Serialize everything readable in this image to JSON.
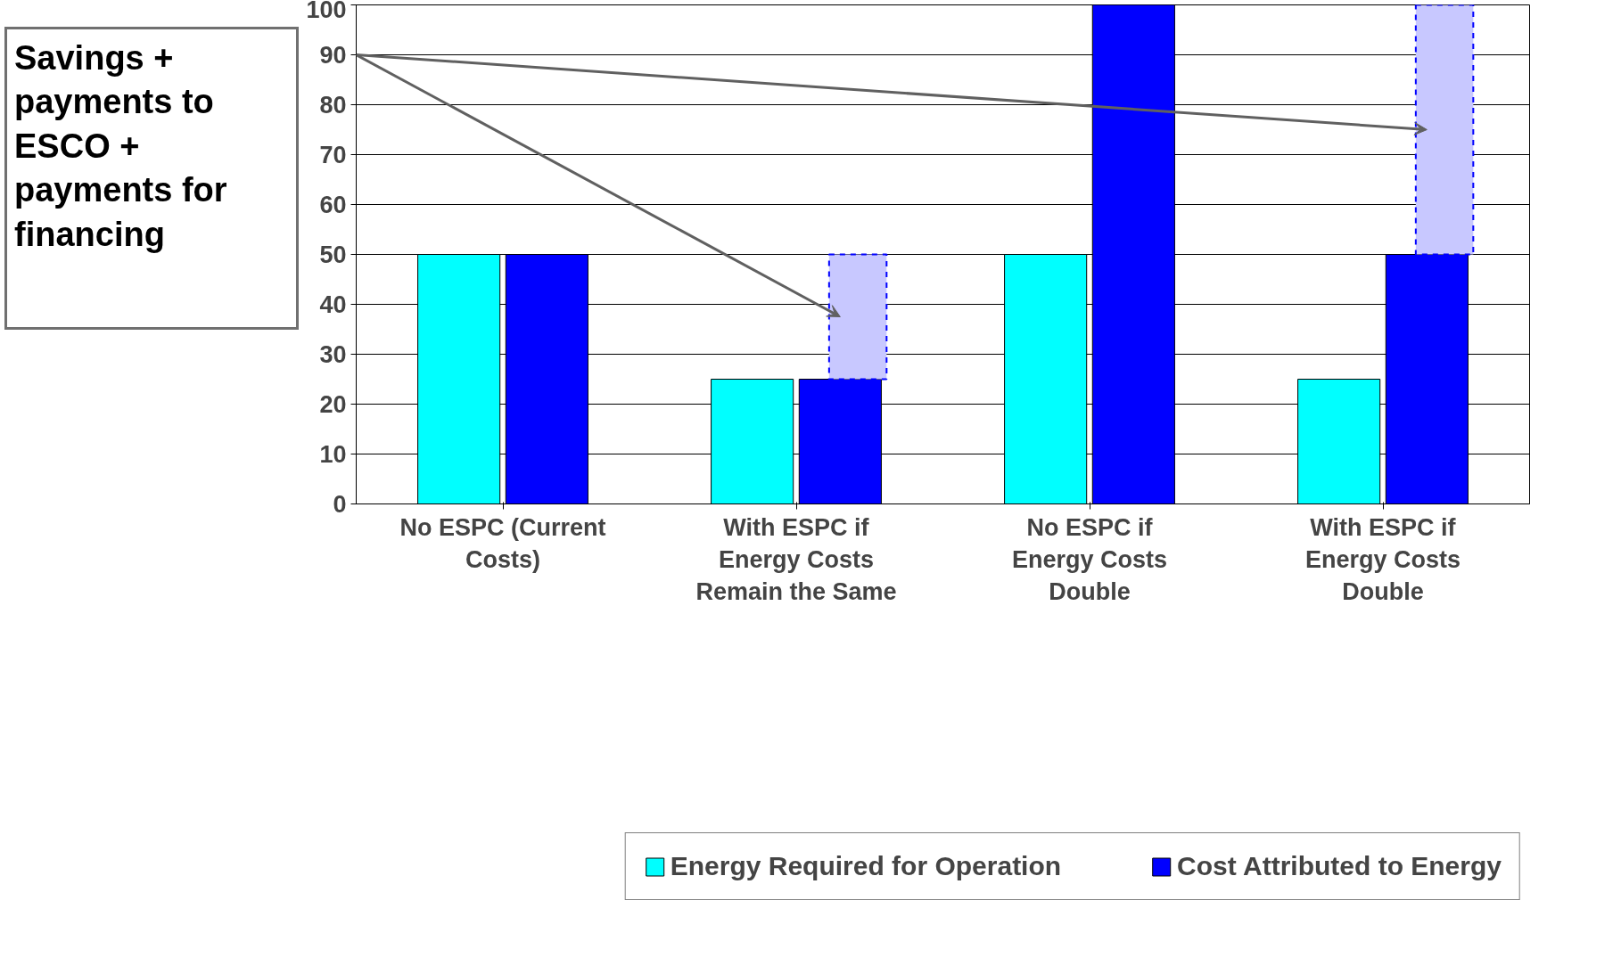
{
  "chart_data": {
    "type": "bar",
    "categories": [
      "No ESPC (Current Costs)",
      "With ESPC if Energy Costs Remain the Same",
      "No ESPC if Energy Costs Double",
      "With ESPC if Energy Costs Double"
    ],
    "series": [
      {
        "name": "Energy Required for Operation",
        "color": "#00ffff",
        "values": [
          50,
          25,
          50,
          25
        ]
      },
      {
        "name": "Cost Attributed to Energy",
        "color": "#0000ff",
        "values": [
          50,
          25,
          100,
          50
        ]
      },
      {
        "color": "#c8c8ff",
        "values": [
          null,
          25,
          null,
          50
        ],
        "base": [
          null,
          25,
          null,
          50
        ],
        "line_style": "dashed"
      }
    ],
    "ylim": [
      0,
      100
    ],
    "yticks": [
      0,
      10,
      20,
      30,
      40,
      50,
      60,
      70,
      80,
      90,
      100
    ],
    "grid": "y",
    "legend": "bottom",
    "annotations": [
      "Savings + payments to ESCO + payments for financing"
    ]
  }
}
